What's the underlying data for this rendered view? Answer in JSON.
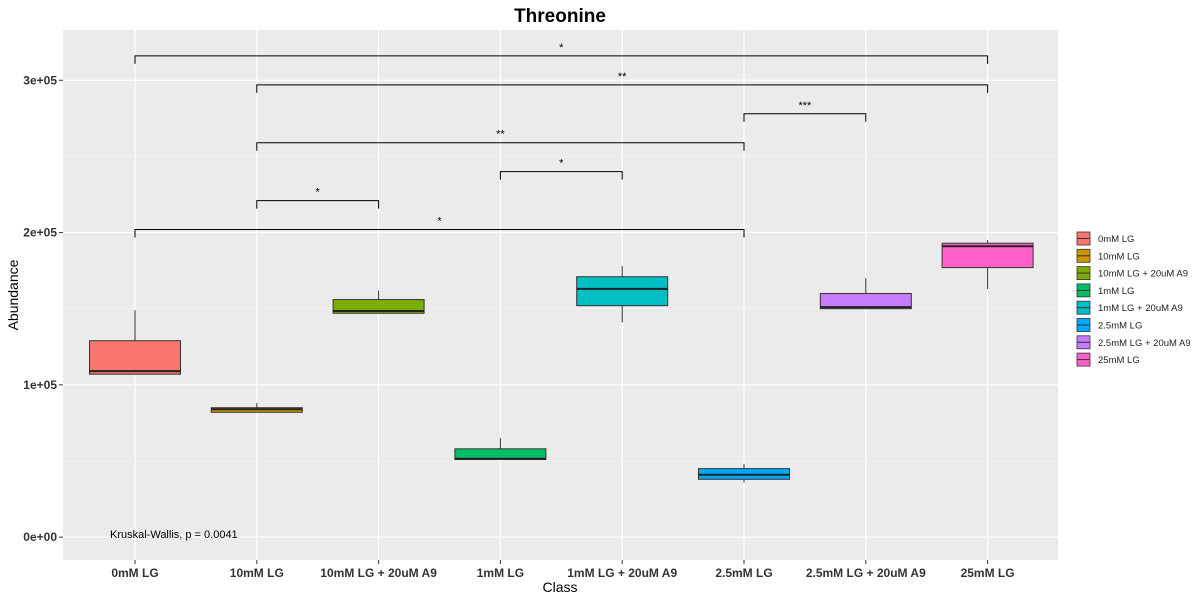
{
  "chart_data": {
    "type": "boxplot",
    "title": "Threonine",
    "xlabel": "Class",
    "ylabel": "Abundance",
    "ylim": [
      -15000,
      333000
    ],
    "yticks": [
      0,
      100000,
      200000,
      300000
    ],
    "ytick_labels": [
      "0e+00",
      "1e+05",
      "2e+05",
      "3e+05"
    ],
    "grid": true,
    "legend_position": "right",
    "categories": [
      "0mM LG",
      "10mM LG",
      "10mM LG + 20uM A9",
      "1mM LG",
      "1mM LG + 20uM A9",
      "2.5mM LG",
      "2.5mM LG + 20uM A9",
      "25mM LG"
    ],
    "colors": [
      "#F8766D",
      "#CD9600",
      "#7CAE00",
      "#00BE67",
      "#00BFC4",
      "#00A9FF",
      "#C77CFF",
      "#FF61CC"
    ],
    "boxes": [
      {
        "min": 107000,
        "q1": 107000,
        "median": 109000,
        "q3": 129000,
        "max": 149000
      },
      {
        "min": 82000,
        "q1": 82000,
        "median": 84000,
        "q3": 85000,
        "max": 88000
      },
      {
        "min": 147000,
        "q1": 147000,
        "median": 148500,
        "q3": 156000,
        "max": 162000
      },
      {
        "min": 51000,
        "q1": 51000,
        "median": 51500,
        "q3": 58000,
        "max": 65000
      },
      {
        "min": 141000,
        "q1": 152000,
        "median": 163000,
        "q3": 171000,
        "max": 178000
      },
      {
        "min": 36000,
        "q1": 38000,
        "median": 41000,
        "q3": 45000,
        "max": 48000
      },
      {
        "min": 150000,
        "q1": 150000,
        "median": 151000,
        "q3": 160000,
        "max": 170000
      },
      {
        "min": 163000,
        "q1": 177000,
        "median": 191000,
        "q3": 193000,
        "max": 195000
      }
    ],
    "comparisons": [
      {
        "from": 0,
        "to": 7,
        "y": 316000,
        "label": "*"
      },
      {
        "from": 1,
        "to": 7,
        "y": 297000,
        "label": "**"
      },
      {
        "from": 5,
        "to": 6,
        "y": 278000,
        "label": "***"
      },
      {
        "from": 1,
        "to": 5,
        "y": 259000,
        "label": "**"
      },
      {
        "from": 3,
        "to": 4,
        "y": 240000,
        "label": "*"
      },
      {
        "from": 1,
        "to": 2,
        "y": 221000,
        "label": "*"
      },
      {
        "from": 0,
        "to": 5,
        "y": 202000,
        "label": "*"
      }
    ],
    "annotation": "Kruskal-Wallis, p = 0.0041"
  }
}
